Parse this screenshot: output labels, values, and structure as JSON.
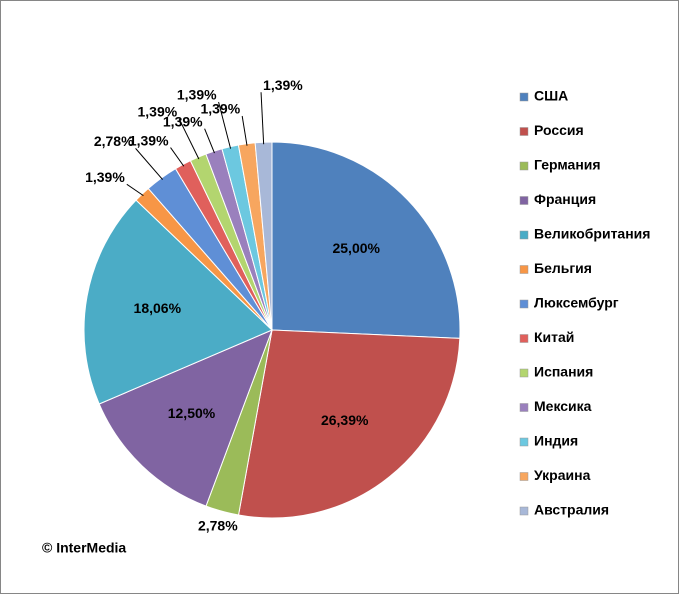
{
  "chart_data": {
    "type": "pie",
    "categories": [
      "США",
      "Россия",
      "Германия",
      "Франция",
      "Великобритания",
      "Бельгия",
      "Люксембург",
      "Китай",
      "Испания",
      "Мексика",
      "Индия",
      "Украина",
      "Австралия"
    ],
    "values": [
      25.0,
      26.39,
      2.78,
      12.5,
      18.06,
      1.39,
      2.78,
      1.39,
      1.39,
      1.39,
      1.39,
      1.39,
      1.39
    ],
    "value_labels": [
      "25,00%",
      "26,39%",
      "2,78%",
      "12,50%",
      "18,06%",
      "1,39%",
      "2,78%",
      "1,39%",
      "1,39%",
      "1,39%",
      "1,39%",
      "1,39%",
      "1,39%"
    ],
    "colors": [
      "#4f81bd",
      "#c0504d",
      "#9bbb59",
      "#8064a2",
      "#4bacc6",
      "#f79646",
      "#5f8fd6",
      "#e0605c",
      "#b3d56f",
      "#9a80bd",
      "#6cc8e0",
      "#f7a65f",
      "#a8b8d8"
    ],
    "legend": "right",
    "annotation": "© InterMedia"
  }
}
